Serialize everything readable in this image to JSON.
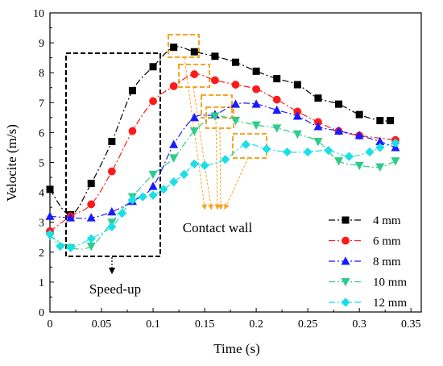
{
  "chart_data": {
    "type": "line",
    "xlabel": "Time (s)",
    "ylabel": "Velocite (m/s)",
    "xlim": [
      0,
      0.36
    ],
    "ylim": [
      0,
      10
    ],
    "xticks": [
      "0",
      "0.05",
      "0.1",
      "0.15",
      "0.2",
      "0.25",
      "0.3",
      "0.35"
    ],
    "yticks": [
      "0",
      "1",
      "2",
      "3",
      "4",
      "5",
      "6",
      "7",
      "8",
      "9",
      "10"
    ],
    "legend_position": "bottom-right",
    "annotations": {
      "speed_up": "Speed-up",
      "contact_wall": "Contact wall"
    },
    "series": [
      {
        "name": "4 mm",
        "color": "#000000",
        "marker": "square",
        "dash": "8,3,2,3",
        "x": [
          0,
          0.02,
          0.04,
          0.06,
          0.08,
          0.1,
          0.12,
          0.14,
          0.16,
          0.18,
          0.2,
          0.22,
          0.24,
          0.26,
          0.28,
          0.3,
          0.32,
          0.33
        ],
        "y": [
          4.1,
          3.25,
          4.3,
          5.7,
          7.4,
          8.2,
          8.85,
          8.7,
          8.55,
          8.35,
          8.05,
          7.8,
          7.6,
          7.15,
          6.95,
          6.6,
          6.4,
          6.4
        ]
      },
      {
        "name": "6 mm",
        "color": "#ff1a1a",
        "marker": "circle",
        "dash": "8,3,2,3",
        "x": [
          0,
          0.02,
          0.04,
          0.06,
          0.08,
          0.1,
          0.12,
          0.14,
          0.16,
          0.18,
          0.2,
          0.22,
          0.24,
          0.26,
          0.28,
          0.3,
          0.335
        ],
        "y": [
          2.7,
          3.2,
          3.6,
          4.7,
          6.05,
          7.05,
          7.55,
          7.95,
          7.75,
          7.6,
          7.45,
          7.1,
          6.7,
          6.35,
          6.05,
          5.9,
          5.75
        ]
      },
      {
        "name": "8 mm",
        "color": "#1a1aff",
        "marker": "triangle-up",
        "dash": "8,3,2,3",
        "x": [
          0,
          0.02,
          0.04,
          0.06,
          0.08,
          0.1,
          0.12,
          0.14,
          0.16,
          0.18,
          0.2,
          0.22,
          0.24,
          0.26,
          0.28,
          0.3,
          0.32,
          0.335
        ],
        "y": [
          3.2,
          3.15,
          3.15,
          3.35,
          3.7,
          4.2,
          5.6,
          6.5,
          6.6,
          6.95,
          6.95,
          6.75,
          6.55,
          6.2,
          6.05,
          5.9,
          5.7,
          5.5
        ]
      },
      {
        "name": "10 mm",
        "color": "#2ecc8a",
        "marker": "triangle-down",
        "dash": "8,3,2,3",
        "x": [
          0,
          0.02,
          0.04,
          0.06,
          0.08,
          0.1,
          0.12,
          0.14,
          0.16,
          0.18,
          0.2,
          0.22,
          0.24,
          0.26,
          0.28,
          0.3,
          0.32,
          0.335
        ],
        "y": [
          2.55,
          2.15,
          2.2,
          3.0,
          3.85,
          4.6,
          5.15,
          6.05,
          6.55,
          6.4,
          6.25,
          6.15,
          5.95,
          5.7,
          5.05,
          4.9,
          4.85,
          5.05
        ]
      },
      {
        "name": "12 mm",
        "color": "#1adfe6",
        "marker": "diamond",
        "dash": "8,3,2,3",
        "x": [
          0,
          0.01,
          0.02,
          0.04,
          0.06,
          0.07,
          0.08,
          0.09,
          0.1,
          0.11,
          0.12,
          0.13,
          0.14,
          0.15,
          0.17,
          0.19,
          0.21,
          0.23,
          0.25,
          0.27,
          0.29,
          0.31,
          0.32,
          0.335
        ],
        "y": [
          2.6,
          2.2,
          2.15,
          2.45,
          2.85,
          3.3,
          3.75,
          3.85,
          3.9,
          4.1,
          4.35,
          4.6,
          4.95,
          4.9,
          5.1,
          5.6,
          5.45,
          5.35,
          5.35,
          5.4,
          5.2,
          5.35,
          5.5,
          5.65
        ]
      }
    ]
  }
}
